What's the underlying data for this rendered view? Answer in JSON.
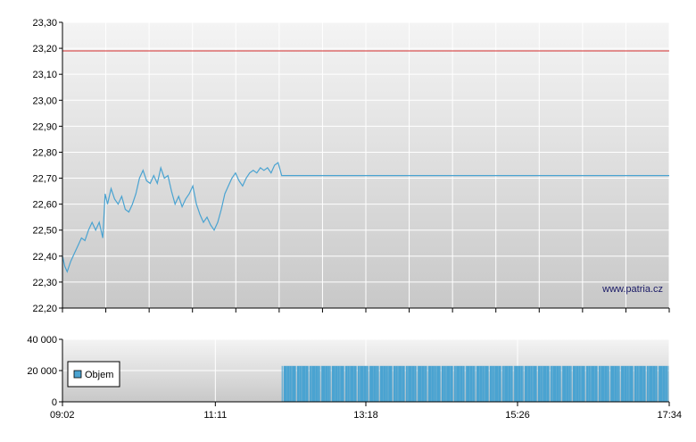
{
  "watermark": "www.patria.cz",
  "colors": {
    "price_line": "#4aa3d1",
    "reference_line": "#d22b2b",
    "volume_bar": "#4aa3d1",
    "plot_bg_top": "#f4f4f4",
    "plot_bg_bottom": "#c8c8c8",
    "grid": "#ffffff"
  },
  "chart_data": [
    {
      "type": "line",
      "title": "",
      "ylim": [
        22.2,
        23.3
      ],
      "y_ticks": [
        "22,20",
        "22,30",
        "22,40",
        "22,50",
        "22,60",
        "22,70",
        "22,80",
        "22,90",
        "23,00",
        "23,10",
        "23,20",
        "23,30"
      ],
      "xlim": [
        "09:02",
        "17:34"
      ],
      "grid": true,
      "reference_line": {
        "value": 23.19
      },
      "series": [
        {
          "points": [
            [
              "09:02",
              22.4
            ],
            [
              "09:04",
              22.36
            ],
            [
              "09:06",
              22.34
            ],
            [
              "09:09",
              22.38
            ],
            [
              "09:12",
              22.41
            ],
            [
              "09:15",
              22.44
            ],
            [
              "09:18",
              22.47
            ],
            [
              "09:21",
              22.46
            ],
            [
              "09:24",
              22.5
            ],
            [
              "09:27",
              22.53
            ],
            [
              "09:30",
              22.5
            ],
            [
              "09:33",
              22.53
            ],
            [
              "09:36",
              22.47
            ],
            [
              "09:38",
              22.64
            ],
            [
              "09:40",
              22.6
            ],
            [
              "09:43",
              22.66
            ],
            [
              "09:46",
              22.62
            ],
            [
              "09:49",
              22.6
            ],
            [
              "09:52",
              22.63
            ],
            [
              "09:55",
              22.58
            ],
            [
              "09:58",
              22.57
            ],
            [
              "10:01",
              22.6
            ],
            [
              "10:04",
              22.64
            ],
            [
              "10:07",
              22.7
            ],
            [
              "10:10",
              22.73
            ],
            [
              "10:13",
              22.69
            ],
            [
              "10:16",
              22.68
            ],
            [
              "10:19",
              22.71
            ],
            [
              "10:22",
              22.68
            ],
            [
              "10:25",
              22.74
            ],
            [
              "10:28",
              22.7
            ],
            [
              "10:31",
              22.71
            ],
            [
              "10:34",
              22.65
            ],
            [
              "10:37",
              22.6
            ],
            [
              "10:40",
              22.63
            ],
            [
              "10:43",
              22.59
            ],
            [
              "10:46",
              22.62
            ],
            [
              "10:49",
              22.64
            ],
            [
              "10:52",
              22.67
            ],
            [
              "10:55",
              22.6
            ],
            [
              "10:58",
              22.56
            ],
            [
              "11:01",
              22.53
            ],
            [
              "11:04",
              22.55
            ],
            [
              "11:07",
              22.52
            ],
            [
              "11:10",
              22.5
            ],
            [
              "11:13",
              22.53
            ],
            [
              "11:16",
              22.58
            ],
            [
              "11:19",
              22.64
            ],
            [
              "11:22",
              22.67
            ],
            [
              "11:25",
              22.7
            ],
            [
              "11:28",
              22.72
            ],
            [
              "11:31",
              22.69
            ],
            [
              "11:34",
              22.67
            ],
            [
              "11:37",
              22.7
            ],
            [
              "11:40",
              22.72
            ],
            [
              "11:43",
              22.73
            ],
            [
              "11:46",
              22.72
            ],
            [
              "11:49",
              22.74
            ],
            [
              "11:52",
              22.73
            ],
            [
              "11:55",
              22.74
            ],
            [
              "11:58",
              22.72
            ],
            [
              "12:01",
              22.75
            ],
            [
              "12:04",
              22.76
            ],
            [
              "12:07",
              22.71
            ],
            [
              "12:10",
              22.71
            ],
            [
              "17:34",
              22.71
            ]
          ]
        }
      ]
    },
    {
      "type": "bar",
      "title": "",
      "ylim": [
        0,
        40000
      ],
      "y_ticks": [
        "0",
        "20 000",
        "40 000"
      ],
      "x_ticks": [
        "09:02",
        "11:11",
        "13:18",
        "15:26",
        "17:34"
      ],
      "xlim": [
        "09:02",
        "17:34"
      ],
      "grid": true,
      "legend": {
        "position": "left",
        "entries": [
          "Objem"
        ]
      },
      "bar_segments": [
        {
          "start": "12:07",
          "end": "17:34",
          "value": 23000
        }
      ]
    }
  ]
}
